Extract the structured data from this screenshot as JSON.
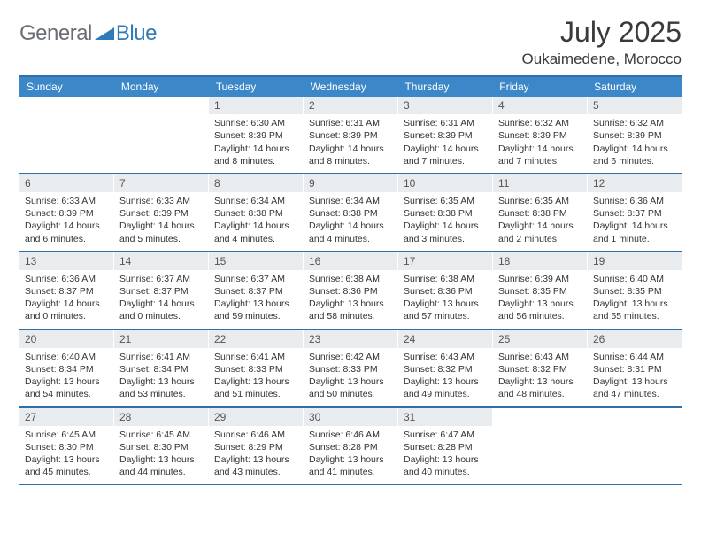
{
  "logo": {
    "text1": "General",
    "text2": "Blue",
    "text1_color": "#6a6f75",
    "text2_color": "#2f7ab8"
  },
  "title": "July 2025",
  "location": "Oukaimedene, Morocco",
  "colors": {
    "header_bg": "#3b87c8",
    "header_text": "#ffffff",
    "border": "#2f6faa",
    "daynum_bg": "#e9ecef",
    "text": "#333333"
  },
  "weekdays": [
    "Sunday",
    "Monday",
    "Tuesday",
    "Wednesday",
    "Thursday",
    "Friday",
    "Saturday"
  ],
  "weeks": [
    [
      {
        "empty": true
      },
      {
        "empty": true
      },
      {
        "day": "1",
        "sunrise": "Sunrise: 6:30 AM",
        "sunset": "Sunset: 8:39 PM",
        "daylight": "Daylight: 14 hours and 8 minutes."
      },
      {
        "day": "2",
        "sunrise": "Sunrise: 6:31 AM",
        "sunset": "Sunset: 8:39 PM",
        "daylight": "Daylight: 14 hours and 8 minutes."
      },
      {
        "day": "3",
        "sunrise": "Sunrise: 6:31 AM",
        "sunset": "Sunset: 8:39 PM",
        "daylight": "Daylight: 14 hours and 7 minutes."
      },
      {
        "day": "4",
        "sunrise": "Sunrise: 6:32 AM",
        "sunset": "Sunset: 8:39 PM",
        "daylight": "Daylight: 14 hours and 7 minutes."
      },
      {
        "day": "5",
        "sunrise": "Sunrise: 6:32 AM",
        "sunset": "Sunset: 8:39 PM",
        "daylight": "Daylight: 14 hours and 6 minutes."
      }
    ],
    [
      {
        "day": "6",
        "sunrise": "Sunrise: 6:33 AM",
        "sunset": "Sunset: 8:39 PM",
        "daylight": "Daylight: 14 hours and 6 minutes."
      },
      {
        "day": "7",
        "sunrise": "Sunrise: 6:33 AM",
        "sunset": "Sunset: 8:39 PM",
        "daylight": "Daylight: 14 hours and 5 minutes."
      },
      {
        "day": "8",
        "sunrise": "Sunrise: 6:34 AM",
        "sunset": "Sunset: 8:38 PM",
        "daylight": "Daylight: 14 hours and 4 minutes."
      },
      {
        "day": "9",
        "sunrise": "Sunrise: 6:34 AM",
        "sunset": "Sunset: 8:38 PM",
        "daylight": "Daylight: 14 hours and 4 minutes."
      },
      {
        "day": "10",
        "sunrise": "Sunrise: 6:35 AM",
        "sunset": "Sunset: 8:38 PM",
        "daylight": "Daylight: 14 hours and 3 minutes."
      },
      {
        "day": "11",
        "sunrise": "Sunrise: 6:35 AM",
        "sunset": "Sunset: 8:38 PM",
        "daylight": "Daylight: 14 hours and 2 minutes."
      },
      {
        "day": "12",
        "sunrise": "Sunrise: 6:36 AM",
        "sunset": "Sunset: 8:37 PM",
        "daylight": "Daylight: 14 hours and 1 minute."
      }
    ],
    [
      {
        "day": "13",
        "sunrise": "Sunrise: 6:36 AM",
        "sunset": "Sunset: 8:37 PM",
        "daylight": "Daylight: 14 hours and 0 minutes."
      },
      {
        "day": "14",
        "sunrise": "Sunrise: 6:37 AM",
        "sunset": "Sunset: 8:37 PM",
        "daylight": "Daylight: 14 hours and 0 minutes."
      },
      {
        "day": "15",
        "sunrise": "Sunrise: 6:37 AM",
        "sunset": "Sunset: 8:37 PM",
        "daylight": "Daylight: 13 hours and 59 minutes."
      },
      {
        "day": "16",
        "sunrise": "Sunrise: 6:38 AM",
        "sunset": "Sunset: 8:36 PM",
        "daylight": "Daylight: 13 hours and 58 minutes."
      },
      {
        "day": "17",
        "sunrise": "Sunrise: 6:38 AM",
        "sunset": "Sunset: 8:36 PM",
        "daylight": "Daylight: 13 hours and 57 minutes."
      },
      {
        "day": "18",
        "sunrise": "Sunrise: 6:39 AM",
        "sunset": "Sunset: 8:35 PM",
        "daylight": "Daylight: 13 hours and 56 minutes."
      },
      {
        "day": "19",
        "sunrise": "Sunrise: 6:40 AM",
        "sunset": "Sunset: 8:35 PM",
        "daylight": "Daylight: 13 hours and 55 minutes."
      }
    ],
    [
      {
        "day": "20",
        "sunrise": "Sunrise: 6:40 AM",
        "sunset": "Sunset: 8:34 PM",
        "daylight": "Daylight: 13 hours and 54 minutes."
      },
      {
        "day": "21",
        "sunrise": "Sunrise: 6:41 AM",
        "sunset": "Sunset: 8:34 PM",
        "daylight": "Daylight: 13 hours and 53 minutes."
      },
      {
        "day": "22",
        "sunrise": "Sunrise: 6:41 AM",
        "sunset": "Sunset: 8:33 PM",
        "daylight": "Daylight: 13 hours and 51 minutes."
      },
      {
        "day": "23",
        "sunrise": "Sunrise: 6:42 AM",
        "sunset": "Sunset: 8:33 PM",
        "daylight": "Daylight: 13 hours and 50 minutes."
      },
      {
        "day": "24",
        "sunrise": "Sunrise: 6:43 AM",
        "sunset": "Sunset: 8:32 PM",
        "daylight": "Daylight: 13 hours and 49 minutes."
      },
      {
        "day": "25",
        "sunrise": "Sunrise: 6:43 AM",
        "sunset": "Sunset: 8:32 PM",
        "daylight": "Daylight: 13 hours and 48 minutes."
      },
      {
        "day": "26",
        "sunrise": "Sunrise: 6:44 AM",
        "sunset": "Sunset: 8:31 PM",
        "daylight": "Daylight: 13 hours and 47 minutes."
      }
    ],
    [
      {
        "day": "27",
        "sunrise": "Sunrise: 6:45 AM",
        "sunset": "Sunset: 8:30 PM",
        "daylight": "Daylight: 13 hours and 45 minutes."
      },
      {
        "day": "28",
        "sunrise": "Sunrise: 6:45 AM",
        "sunset": "Sunset: 8:30 PM",
        "daylight": "Daylight: 13 hours and 44 minutes."
      },
      {
        "day": "29",
        "sunrise": "Sunrise: 6:46 AM",
        "sunset": "Sunset: 8:29 PM",
        "daylight": "Daylight: 13 hours and 43 minutes."
      },
      {
        "day": "30",
        "sunrise": "Sunrise: 6:46 AM",
        "sunset": "Sunset: 8:28 PM",
        "daylight": "Daylight: 13 hours and 41 minutes."
      },
      {
        "day": "31",
        "sunrise": "Sunrise: 6:47 AM",
        "sunset": "Sunset: 8:28 PM",
        "daylight": "Daylight: 13 hours and 40 minutes."
      },
      {
        "empty": true
      },
      {
        "empty": true
      }
    ]
  ]
}
